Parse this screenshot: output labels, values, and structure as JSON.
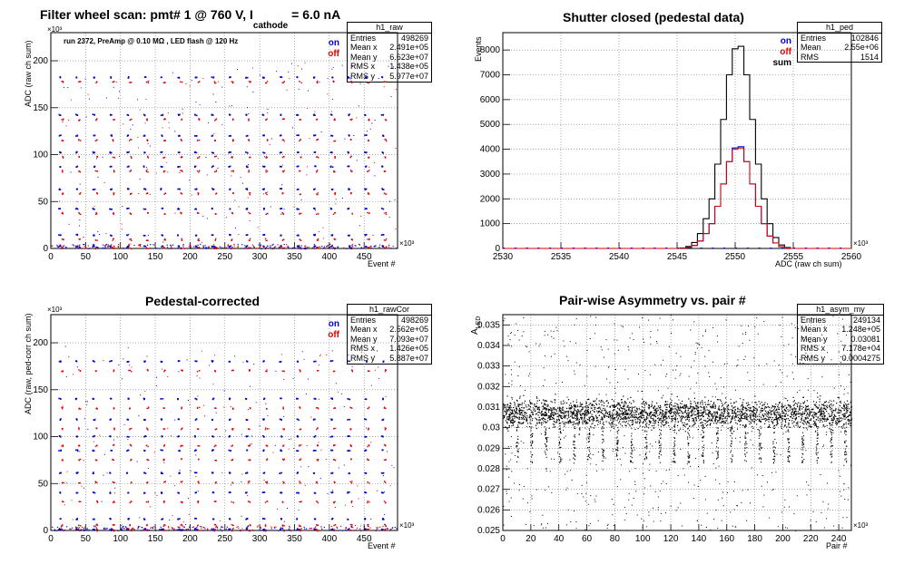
{
  "panels": [
    {
      "title": "Filter wheel scan: pmt#   1 @   760 V, I",
      "title_sub": "cathode",
      "title_tail": " = 6.0 nA",
      "xlabel": "Event #",
      "ylabel": "ADC (raw ch sum)",
      "yexp": "×10³",
      "xexp": "×10³",
      "note": "run 2372, PreAmp @ 0.10 MΩ , LED flash @  120 Hz",
      "legend": [
        "on",
        "off"
      ],
      "stats": {
        "name": "h1_raw",
        "rows": [
          [
            "Entries",
            "498269"
          ],
          [
            "Mean x",
            "2.491e+05"
          ],
          [
            "Mean y",
            "6.623e+07"
          ],
          [
            "RMS x",
            "1.438e+05"
          ],
          [
            "RMS y",
            "5.977e+07"
          ]
        ]
      }
    },
    {
      "title": "Shutter closed (pedestal data)",
      "xlabel": "ADC (raw ch sum)",
      "ylabel": "Events",
      "xexp": "×10³",
      "legend": [
        "on",
        "off",
        "sum"
      ],
      "stats": {
        "name": "h1_ped",
        "rows": [
          [
            "Entries",
            "102846"
          ],
          [
            "Mean",
            "2.55e+06"
          ],
          [
            "RMS",
            "1514"
          ]
        ]
      }
    },
    {
      "title": "Pedestal-corrected",
      "xlabel": "Event #",
      "ylabel": "ADC (raw, ped-corr ch sum)",
      "yexp": "×10³",
      "xexp": "×10³",
      "legend": [
        "on",
        "off"
      ],
      "stats": {
        "name": "h1_rawCor",
        "rows": [
          [
            "Entries",
            "498269"
          ],
          [
            "Mean x",
            "2.562e+05"
          ],
          [
            "Mean y",
            "7.093e+07"
          ],
          [
            "RMS x",
            "1.426e+05"
          ],
          [
            "RMS y",
            "5.887e+07"
          ]
        ]
      }
    },
    {
      "title": "Pair-wise Asymmetry vs. pair #",
      "xlabel": "Pair #",
      "ylabel": "A",
      "ylabel_sub": "LED",
      "xexp": "×10³",
      "stats": {
        "name": "h1_asym_my",
        "rows": [
          [
            "Entries",
            "249134"
          ],
          [
            "Mean x",
            "1.248e+05"
          ],
          [
            "Mean y",
            "0.03081"
          ],
          [
            "RMS x",
            "7.178e+04"
          ],
          [
            "RMS y",
            "0.0004275"
          ]
        ]
      }
    }
  ],
  "colors": {
    "on": "#0000cc",
    "off": "#dd0000",
    "sum": "#000000",
    "grid": "#777777"
  },
  "chart_data": [
    {
      "type": "scatter",
      "title": "Filter wheel scan: pmt#   1 @   760 V, I cathode = 6.0 nA",
      "xlabel": "Event #",
      "ylabel": "ADC (raw ch sum)",
      "xlim": [
        0,
        498
      ],
      "ylim": [
        0,
        230
      ],
      "xticks": [
        0,
        50,
        100,
        150,
        200,
        250,
        300,
        350,
        400,
        450
      ],
      "yticks": [
        0,
        50,
        100,
        150,
        200
      ],
      "grid": true,
      "legend_position": "top-right",
      "series": [
        {
          "name": "on",
          "levels": [
            183,
            143,
            121,
            103,
            88,
            64,
            43,
            15,
            3
          ]
        },
        {
          "name": "off",
          "levels": [
            178,
            138,
            116,
            98,
            83,
            59,
            38,
            10,
            1
          ]
        }
      ]
    },
    {
      "type": "line",
      "title": "Shutter closed (pedestal data)",
      "xlabel": "ADC (raw ch sum)",
      "ylabel": "Events",
      "xlim": [
        2530,
        2560
      ],
      "ylim": [
        0,
        8700
      ],
      "xticks": [
        2530,
        2535,
        2540,
        2545,
        2550,
        2555,
        2560
      ],
      "yticks": [
        0,
        1000,
        2000,
        3000,
        4000,
        5000,
        6000,
        7000,
        8000
      ],
      "grid": true,
      "legend_position": "top-right",
      "x": [
        2545.5,
        2546,
        2546.5,
        2547,
        2547.5,
        2548,
        2548.5,
        2549,
        2549.5,
        2550,
        2550.5,
        2551,
        2551.5,
        2552,
        2552.5,
        2553,
        2553.5,
        2554,
        2554.5
      ],
      "series": [
        {
          "name": "on",
          "values": [
            10,
            40,
            120,
            300,
            600,
            1000,
            1700,
            2600,
            3500,
            4050,
            4100,
            3500,
            2600,
            1700,
            1000,
            500,
            220,
            70,
            20
          ]
        },
        {
          "name": "off",
          "values": [
            10,
            40,
            120,
            300,
            600,
            1000,
            1700,
            2600,
            3500,
            4000,
            4050,
            3500,
            2600,
            1700,
            1000,
            500,
            220,
            70,
            20
          ]
        },
        {
          "name": "sum",
          "values": [
            20,
            80,
            240,
            600,
            1200,
            2000,
            3400,
            5200,
            7000,
            8050,
            8150,
            7000,
            5200,
            3400,
            2000,
            1000,
            440,
            140,
            40
          ]
        }
      ]
    },
    {
      "type": "scatter",
      "title": "Pedestal-corrected",
      "xlabel": "Event #",
      "ylabel": "ADC (raw, ped-corr ch sum)",
      "xlim": [
        0,
        498
      ],
      "ylim": [
        0,
        230
      ],
      "xticks": [
        0,
        50,
        100,
        150,
        200,
        250,
        300,
        350,
        400,
        450
      ],
      "yticks": [
        0,
        50,
        100,
        150,
        200
      ],
      "grid": true,
      "legend_position": "top-right",
      "series": [
        {
          "name": "on",
          "levels": [
            181,
            141,
            119,
            101,
            86,
            62,
            41,
            13,
            2
          ]
        },
        {
          "name": "off",
          "levels": [
            171,
            131,
            109,
            91,
            76,
            52,
            31,
            6,
            1
          ]
        }
      ]
    },
    {
      "type": "scatter",
      "title": "Pair-wise Asymmetry vs. pair #",
      "xlabel": "Pair #",
      "ylabel": "A LED",
      "xlim": [
        0,
        249
      ],
      "ylim": [
        0.025,
        0.0355
      ],
      "xticks": [
        0,
        20,
        40,
        60,
        80,
        100,
        120,
        140,
        160,
        180,
        200,
        220,
        240
      ],
      "yticks": [
        0.025,
        0.026,
        0.027,
        0.028,
        0.029,
        0.03,
        0.031,
        0.032,
        0.033,
        0.034,
        0.035
      ],
      "grid": true,
      "band": {
        "center": 0.0307,
        "half_width": 0.0006
      }
    }
  ]
}
